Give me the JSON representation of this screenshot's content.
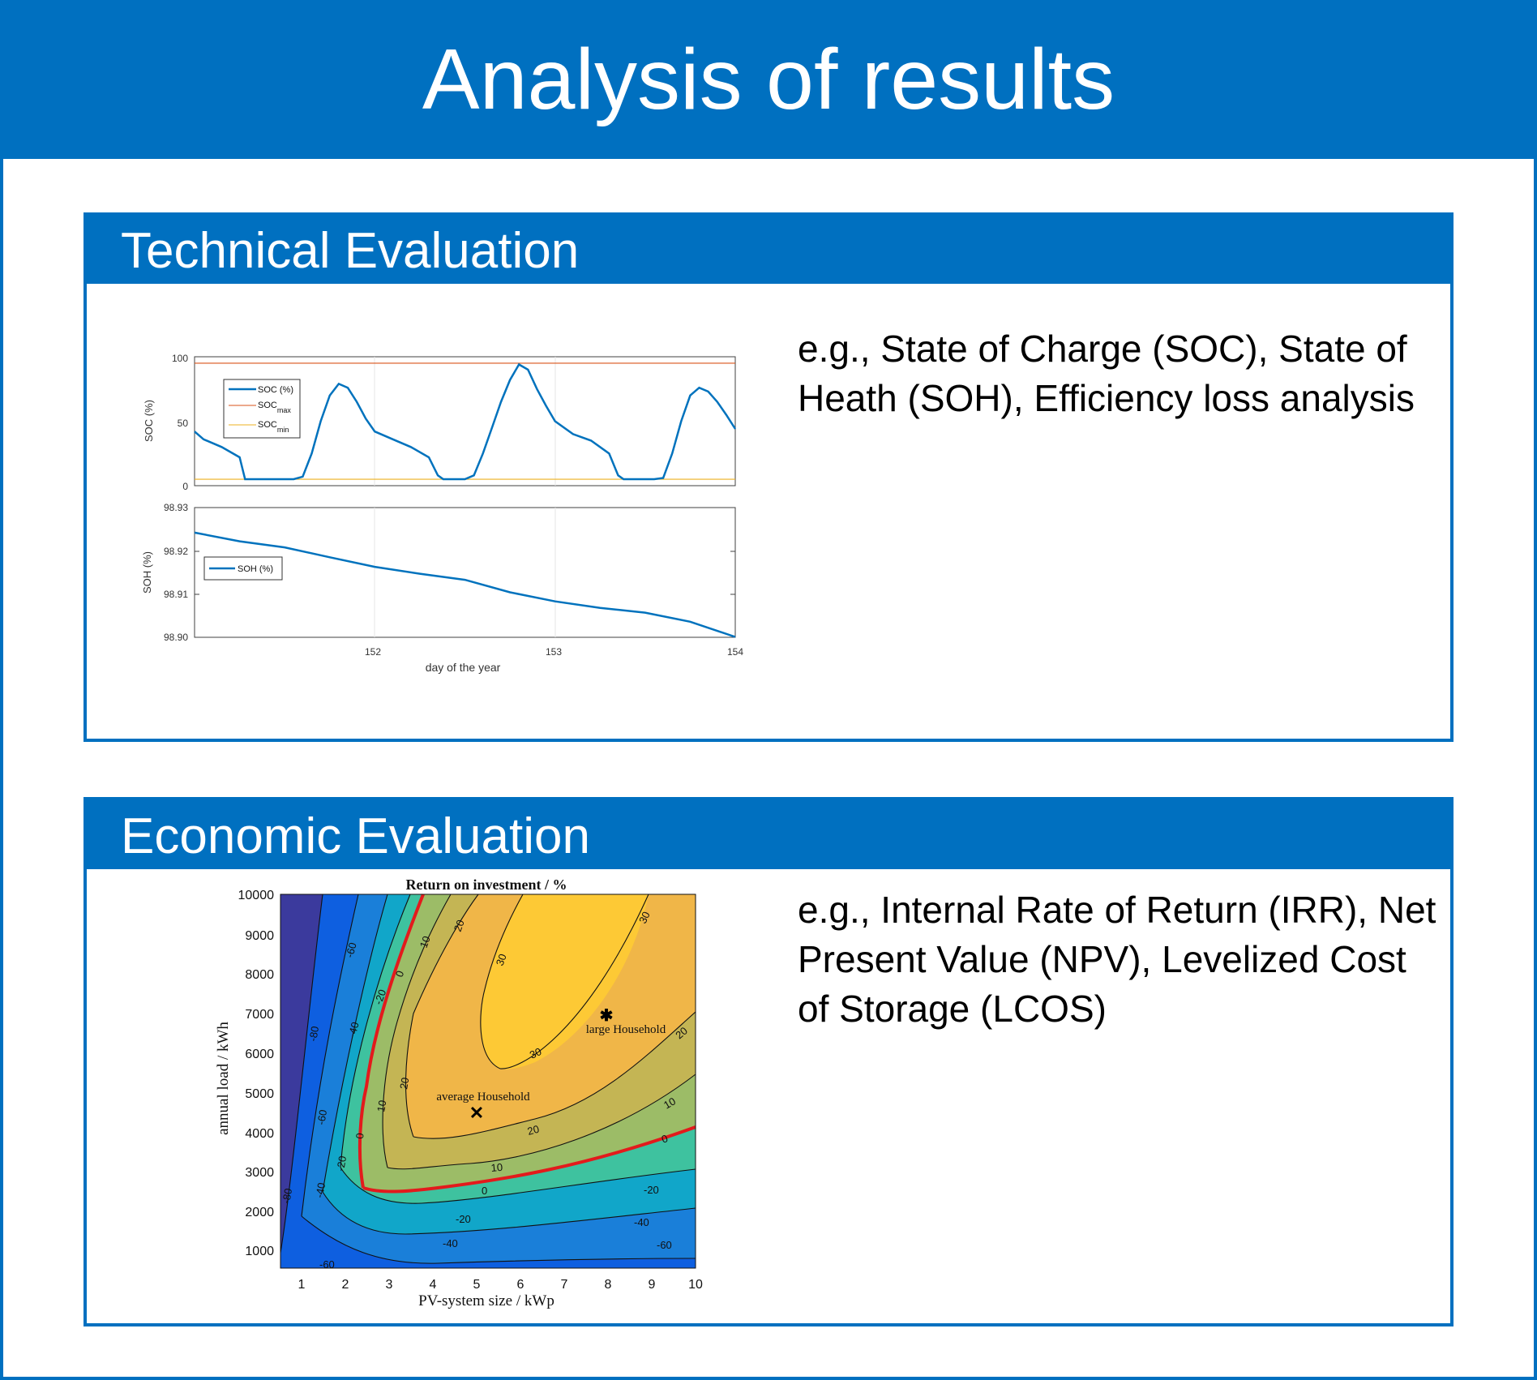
{
  "title": "Analysis of results",
  "colors": {
    "brand": "#0070c0",
    "soc": "#0072bd",
    "soc_max": "#d95319",
    "soc_min": "#edb120",
    "zero_contour": "#e31a1c"
  },
  "technical": {
    "heading": "Technical Evaluation",
    "description": "e.g., State of Charge (SOC), State of Heath (SOH), Efficiency loss analysis"
  },
  "economic": {
    "heading": "Economic Evaluation",
    "description": "e.g., Internal Rate of Return (IRR), Net Present Value (NPV), Levelized Cost of Storage (LCOS)"
  },
  "chart_data": [
    {
      "type": "line",
      "xlabel": "day of the year",
      "ylabel": "SOC (%)",
      "xlim": [
        151,
        154
      ],
      "ylim": [
        0,
        100
      ],
      "yticks": [
        "0",
        "50",
        "100"
      ],
      "grid": true,
      "legend": {
        "position": "top-left",
        "entries": [
          {
            "base": "SOC (%)",
            "sub": ""
          },
          {
            "base": "SOC",
            "sub": "max"
          },
          {
            "base": "SOC",
            "sub": "min"
          }
        ]
      },
      "series": [
        {
          "name": "SOC (%)",
          "x": [
            151.0,
            151.05,
            151.15,
            151.25,
            151.28,
            151.35,
            151.45,
            151.55,
            151.6,
            151.65,
            151.7,
            151.75,
            151.8,
            151.85,
            151.9,
            151.95,
            152.0,
            152.1,
            152.2,
            152.3,
            152.35,
            152.38,
            152.45,
            152.5,
            152.55,
            152.6,
            152.65,
            152.7,
            152.75,
            152.8,
            152.85,
            152.9,
            152.95,
            153.0,
            153.1,
            153.2,
            153.3,
            153.35,
            153.38,
            153.45,
            153.55,
            153.6,
            153.65,
            153.7,
            153.75,
            153.8,
            153.85,
            153.9,
            153.95,
            154.0
          ],
          "y": [
            42,
            36,
            30,
            22,
            5,
            5,
            5,
            5,
            7,
            25,
            50,
            70,
            79,
            76,
            65,
            52,
            42,
            36,
            30,
            22,
            8,
            5,
            5,
            5,
            8,
            25,
            45,
            65,
            82,
            94,
            90,
            75,
            62,
            50,
            40,
            35,
            25,
            8,
            5,
            5,
            5,
            6,
            25,
            50,
            70,
            76,
            73,
            65,
            55,
            44
          ]
        },
        {
          "name": "SOC max",
          "x": [
            151,
            154
          ],
          "y": [
            95,
            95
          ]
        },
        {
          "name": "SOC min",
          "x": [
            151,
            154
          ],
          "y": [
            5,
            5
          ]
        }
      ]
    },
    {
      "type": "line",
      "xlabel": "day of the year",
      "ylabel": "SOH (%)",
      "xlim": [
        151,
        154
      ],
      "ylim": [
        98.9,
        98.93
      ],
      "xticks": [
        "152",
        "153",
        "154"
      ],
      "yticks": [
        "98.90",
        "98.91",
        "98.92",
        "98.93"
      ],
      "grid": true,
      "legend": {
        "position": "middle-left",
        "entries": [
          {
            "base": "SOH (%)",
            "sub": ""
          }
        ]
      },
      "series": [
        {
          "name": "SOH (%)",
          "x": [
            151.0,
            151.25,
            151.5,
            151.75,
            152.0,
            152.25,
            152.5,
            152.75,
            153.0,
            153.25,
            153.5,
            153.75,
            154.0
          ],
          "y": [
            98.9242,
            98.9222,
            98.9208,
            98.9185,
            98.9163,
            98.9147,
            98.9133,
            98.9104,
            98.9083,
            98.9068,
            98.9057,
            98.9036,
            98.9001
          ]
        }
      ]
    },
    {
      "type": "heatmap",
      "title": "Return on investment / %",
      "xlabel": "PV-system size / kWp",
      "ylabel": "annual load / kWh",
      "xlim": [
        0.5,
        10
      ],
      "ylim": [
        500,
        10000
      ],
      "xticks": [
        "1",
        "2",
        "3",
        "4",
        "5",
        "6",
        "7",
        "8",
        "9",
        "10"
      ],
      "yticks": [
        "1000",
        "2000",
        "3000",
        "4000",
        "5000",
        "6000",
        "7000",
        "8000",
        "9000",
        "10000"
      ],
      "levels": [
        -80,
        -60,
        -40,
        -20,
        0,
        10,
        20,
        30
      ],
      "contour_labels": [
        "-80",
        "-60",
        "-40",
        "-20",
        "0",
        "10",
        "20",
        "30"
      ],
      "markers": [
        {
          "label": "average Household",
          "x": 5,
          "y": 4500,
          "symbol": "x"
        },
        {
          "label": "large Household",
          "x": 8,
          "y": 7000,
          "symbol": "*"
        }
      ]
    }
  ]
}
